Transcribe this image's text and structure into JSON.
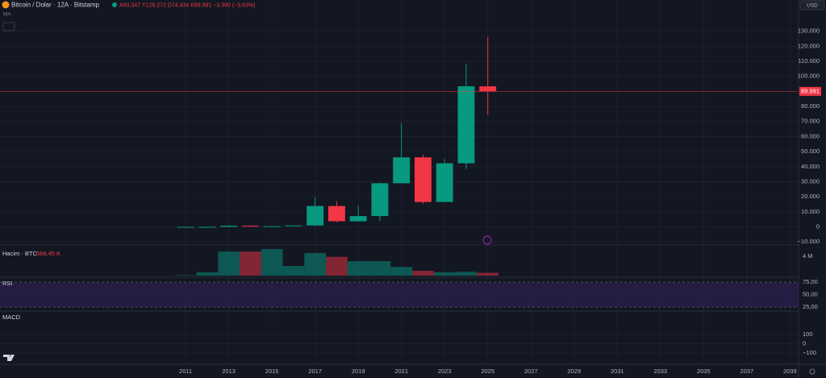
{
  "header": {
    "symbol": "Bitcoin / Dolar · 12A · Bitstamp",
    "ohlc": "A93.347 Y126.272 D74.434 K89.991 −3.390 (−3,63%)",
    "currency": "USD",
    "ma_label": "MA"
  },
  "chart_data": [
    {
      "type": "candlestick",
      "x": [
        2011,
        2012,
        2013,
        2014,
        2015,
        2016,
        2017,
        2018,
        2019,
        2020,
        2021,
        2022,
        2023,
        2024,
        2025
      ],
      "open": [
        1,
        5,
        13,
        732,
        320,
        430,
        963,
        13880,
        3742,
        7194,
        28990,
        46200,
        16540,
        42260,
        93347
      ],
      "high": [
        32,
        16,
        1163,
        1000,
        500,
        980,
        19666,
        17176,
        13880,
        29300,
        69000,
        48190,
        45000,
        108300,
        126272
      ],
      "low": [
        1,
        4,
        13,
        300,
        150,
        350,
        750,
        3122,
        3391,
        3850,
        28800,
        15480,
        16500,
        38500,
        74434
      ],
      "close": [
        5,
        13,
        732,
        320,
        430,
        963,
        13880,
        3742,
        7194,
        28990,
        46200,
        16540,
        42260,
        93400,
        89991
      ],
      "up_color": "#089981",
      "down_color": "#f23645",
      "xlim": [
        2002.4,
        2039.4
      ],
      "xticks": [
        2011,
        2013,
        2015,
        2017,
        2019,
        2021,
        2023,
        2025,
        2027,
        2029,
        2031,
        2033,
        2035,
        2037,
        2039
      ],
      "ylim": [
        -11500,
        140000
      ],
      "yticks": [
        {
          "value": 130000,
          "label": "130.000"
        },
        {
          "value": 120000,
          "label": "120.000"
        },
        {
          "value": 110000,
          "label": "110.000"
        },
        {
          "value": 100000,
          "label": "100.000"
        },
        {
          "value": 90000,
          "label": "90.000"
        },
        {
          "value": 80000,
          "label": "80.000"
        },
        {
          "value": 70000,
          "label": "70.000"
        },
        {
          "value": 60000,
          "label": "60.000"
        },
        {
          "value": 50000,
          "label": "50.000"
        },
        {
          "value": 40000,
          "label": "40.000"
        },
        {
          "value": 30000,
          "label": "30.000"
        },
        {
          "value": 20000,
          "label": "20.000"
        },
        {
          "value": 10000,
          "label": "10.000"
        },
        0,
        {
          "value": -10000,
          "label": "−10.000"
        }
      ],
      "last_price": {
        "value": 89991,
        "label": "89.991"
      }
    },
    {
      "type": "bar",
      "title": "Hacim · BTC",
      "values": [
        100000,
        700000,
        5000000,
        5000000,
        5500000,
        2000000,
        4700000,
        3900000,
        3000000,
        3000000,
        1800000,
        1000000,
        700000,
        800000,
        588450
      ],
      "value_labels": [
        null,
        null,
        null,
        null,
        null,
        null,
        null,
        null,
        null,
        null,
        null,
        null,
        null,
        null,
        "588,45 K"
      ],
      "ylim": [
        0,
        6100000
      ],
      "yticks": [
        {
          "value": 4000000,
          "label": "4 M"
        }
      ]
    }
  ],
  "rsi": {
    "label": "RSI",
    "ylim": [
      14,
      82
    ],
    "yticks": [
      {
        "value": 75,
        "label": "75,00"
      },
      {
        "value": 50,
        "label": "50,00"
      },
      {
        "value": 25,
        "label": "25,00"
      }
    ]
  },
  "macd": {
    "label": "MACD",
    "ylim": [
      -222,
      335
    ],
    "yticks": [
      100,
      0,
      {
        "value": -100,
        "label": "−100"
      }
    ]
  }
}
